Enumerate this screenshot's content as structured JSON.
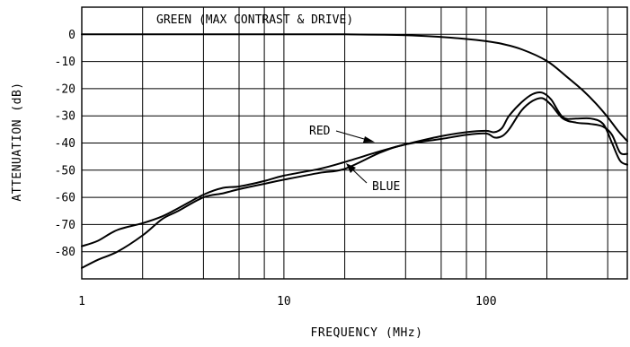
{
  "chart_data": {
    "type": "line",
    "title": "",
    "xlabel": "FREQUENCY (MHz)",
    "ylabel": "ATTENUATION (dB)",
    "x_scale": "log",
    "xlim": [
      1,
      500
    ],
    "ylim": [
      -90,
      10
    ],
    "grid": true,
    "x_tick_labels": [
      {
        "value": 1,
        "label": "1"
      },
      {
        "value": 10,
        "label": "10"
      },
      {
        "value": 100,
        "label": "100"
      }
    ],
    "x_grid_values": [
      1,
      2,
      4,
      6,
      8,
      10,
      20,
      40,
      60,
      80,
      100,
      200,
      400,
      500
    ],
    "y_ticks": [
      0,
      -10,
      -20,
      -30,
      -40,
      -50,
      -60,
      -70,
      -80
    ],
    "y_tick_labels": [
      "0",
      "-10",
      "-20",
      "-30",
      "-40",
      "-50",
      "-60",
      "-70",
      "-80"
    ],
    "series": [
      {
        "name": "GREEN (MAX CONTRAST & DRIVE)",
        "x": [
          1,
          5,
          10,
          20,
          40,
          60,
          80,
          100,
          120,
          150,
          200,
          250,
          300,
          350,
          400,
          450,
          500
        ],
        "y": [
          0,
          0,
          0,
          0,
          -0.3,
          -1,
          -1.7,
          -2.5,
          -3.5,
          -5.5,
          -9.8,
          -15.5,
          -20.5,
          -25.5,
          -30.5,
          -35.5,
          -39.3
        ]
      },
      {
        "name": "RED",
        "x": [
          1,
          1.2,
          1.5,
          2,
          2.5,
          3,
          4,
          5,
          6,
          8,
          10,
          15,
          20,
          30,
          40,
          60,
          80,
          100,
          110,
          120,
          130,
          150,
          170,
          190,
          210,
          240,
          280,
          330,
          380,
          420,
          460,
          500
        ],
        "y": [
          -78,
          -76,
          -72,
          -69.5,
          -67,
          -64,
          -59,
          -56.5,
          -56,
          -54,
          -52,
          -49.5,
          -47,
          -43,
          -40.5,
          -37.5,
          -36,
          -35.5,
          -36,
          -34.5,
          -30,
          -25,
          -22,
          -21.5,
          -24,
          -30.5,
          -31,
          -31,
          -33,
          -40,
          -46.5,
          -48
        ]
      },
      {
        "name": "BLUE",
        "x": [
          1,
          1.2,
          1.5,
          2,
          2.5,
          3,
          4,
          5,
          6,
          8,
          10,
          15,
          20,
          30,
          40,
          60,
          80,
          100,
          110,
          120,
          130,
          150,
          170,
          190,
          210,
          240,
          280,
          330,
          380,
          420,
          460,
          500
        ],
        "y": [
          -86,
          -83,
          -80,
          -74,
          -68,
          -65,
          -60,
          -58.5,
          -57,
          -55,
          -53.5,
          -51,
          -49.5,
          -43.5,
          -40.5,
          -38.5,
          -37,
          -36.5,
          -38,
          -37.5,
          -35,
          -28,
          -24.5,
          -23.5,
          -26,
          -31,
          -32.5,
          -33,
          -34,
          -37,
          -43.5,
          -44
        ]
      }
    ],
    "annotations": [
      {
        "text": "RED",
        "series": "RED"
      },
      {
        "text": "BLUE",
        "series": "BLUE"
      }
    ]
  }
}
